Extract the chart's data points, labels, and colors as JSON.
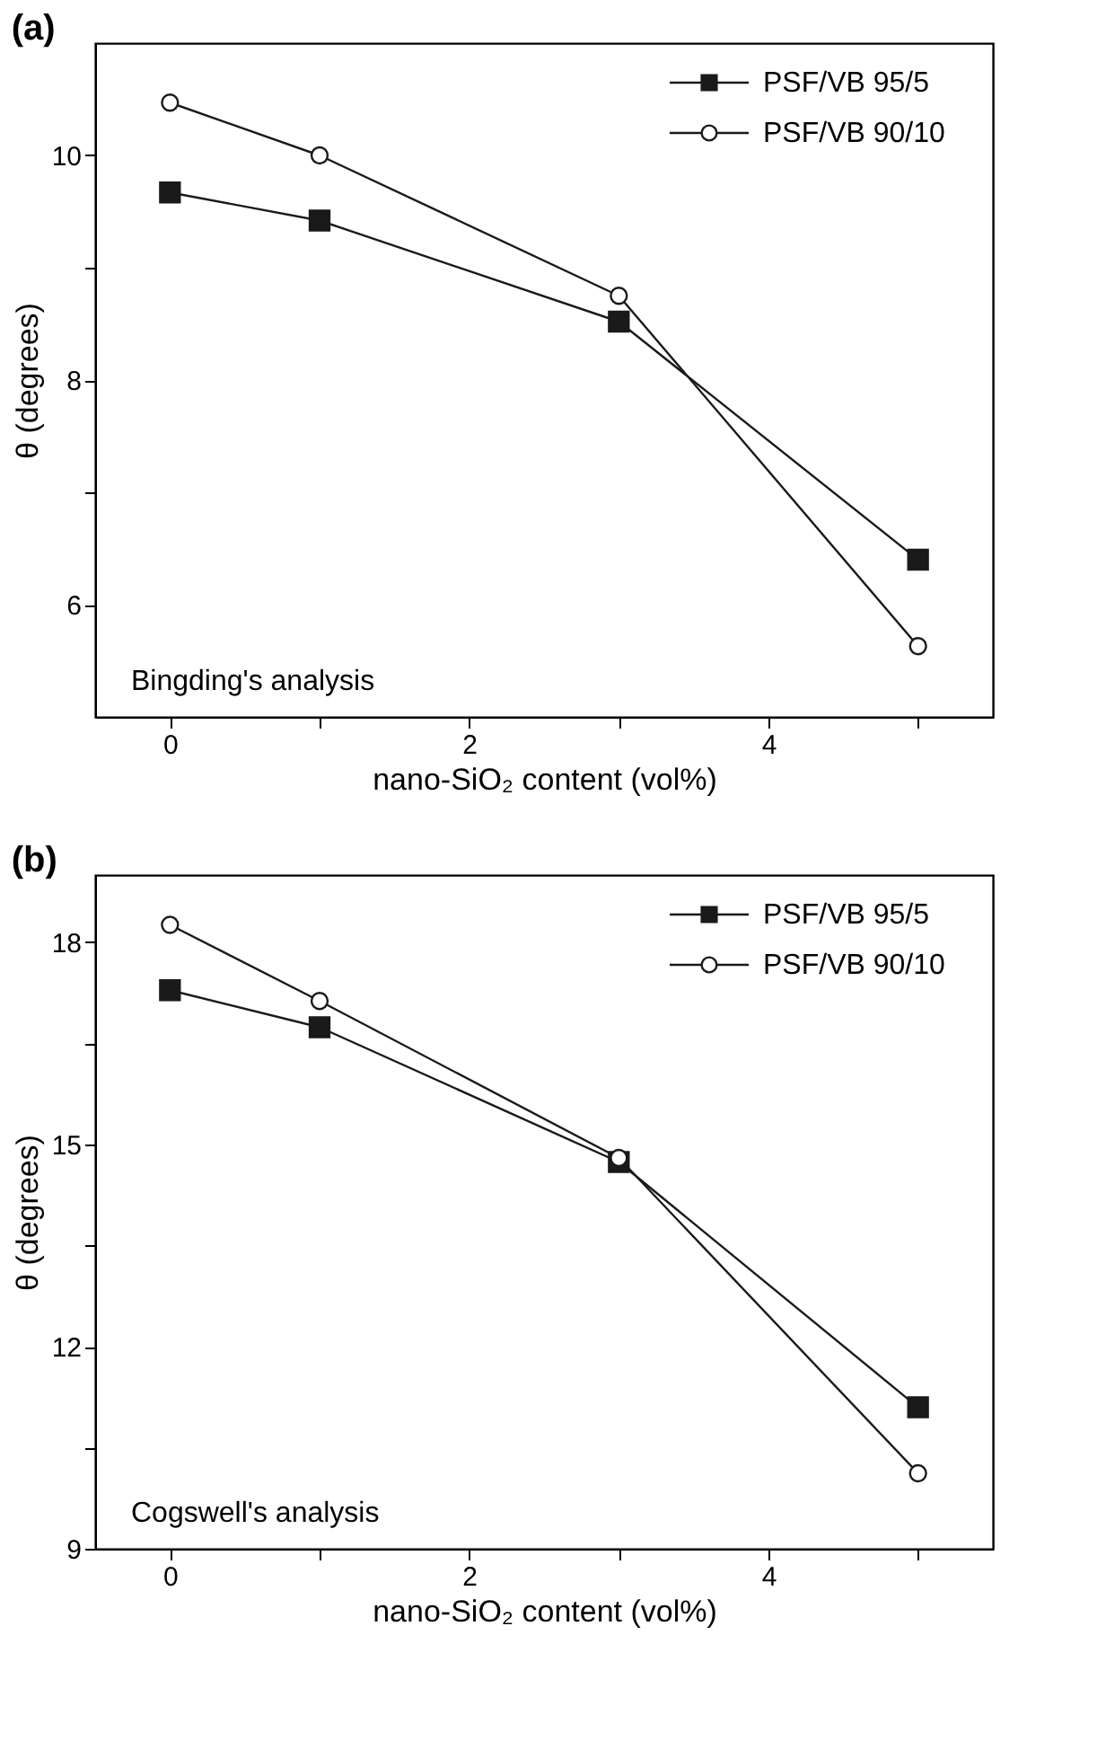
{
  "chart_data": [
    {
      "type": "line",
      "title": "(a)",
      "xlabel": "nano-SiO₂ content (vol%)",
      "ylabel": "θ (degrees)",
      "annotations": [
        "Bingding's analysis"
      ],
      "x": [
        0,
        1,
        3,
        5
      ],
      "xlim": [
        -0.5,
        5.5
      ],
      "xticks": [
        0,
        {
          "value": 1,
          "label": null
        },
        2,
        {
          "value": 3,
          "label": null
        },
        4,
        {
          "value": 5,
          "label": null
        }
      ],
      "ylim": [
        5,
        11
      ],
      "yticks": [
        6,
        {
          "value": 7,
          "label": null
        },
        8,
        {
          "value": 9,
          "label": null
        },
        10
      ],
      "grid": false,
      "legend": "top right",
      "series": [
        {
          "name": "PSF/VB 95/5",
          "color": "#1a1a1a",
          "marker": "square",
          "values": [
            9.67,
            9.42,
            8.52,
            6.4
          ]
        },
        {
          "name": "PSF/VB 90/10",
          "color": "#1a1a1a",
          "marker": "circle",
          "values": [
            10.47,
            10.0,
            8.75,
            5.63
          ]
        }
      ]
    },
    {
      "type": "line",
      "title": "(b)",
      "xlabel": "nano-SiO₂ content (vol%)",
      "ylabel": "θ (degrees)",
      "annotations": [
        "Cogswell's analysis"
      ],
      "x": [
        0,
        1,
        3,
        5
      ],
      "xlim": [
        -0.5,
        5.5
      ],
      "xticks": [
        0,
        {
          "value": 1,
          "label": null
        },
        2,
        {
          "value": 3,
          "label": null
        },
        4,
        {
          "value": 5,
          "label": null
        }
      ],
      "ylim": [
        9,
        19
      ],
      "yticks": [
        9,
        {
          "value": 10.5,
          "label": null
        },
        12,
        {
          "value": 13.5,
          "label": null
        },
        15,
        {
          "value": 16.5,
          "label": null
        },
        18
      ],
      "grid": false,
      "legend": "top right",
      "series": [
        {
          "name": "PSF/VB 95/5",
          "color": "#1a1a1a",
          "marker": "square",
          "values": [
            17.29,
            16.74,
            14.74,
            11.1
          ]
        },
        {
          "name": "PSF/VB 90/10",
          "color": "#1a1a1a",
          "marker": "circle",
          "values": [
            18.26,
            17.13,
            14.8,
            10.12
          ]
        }
      ]
    }
  ]
}
